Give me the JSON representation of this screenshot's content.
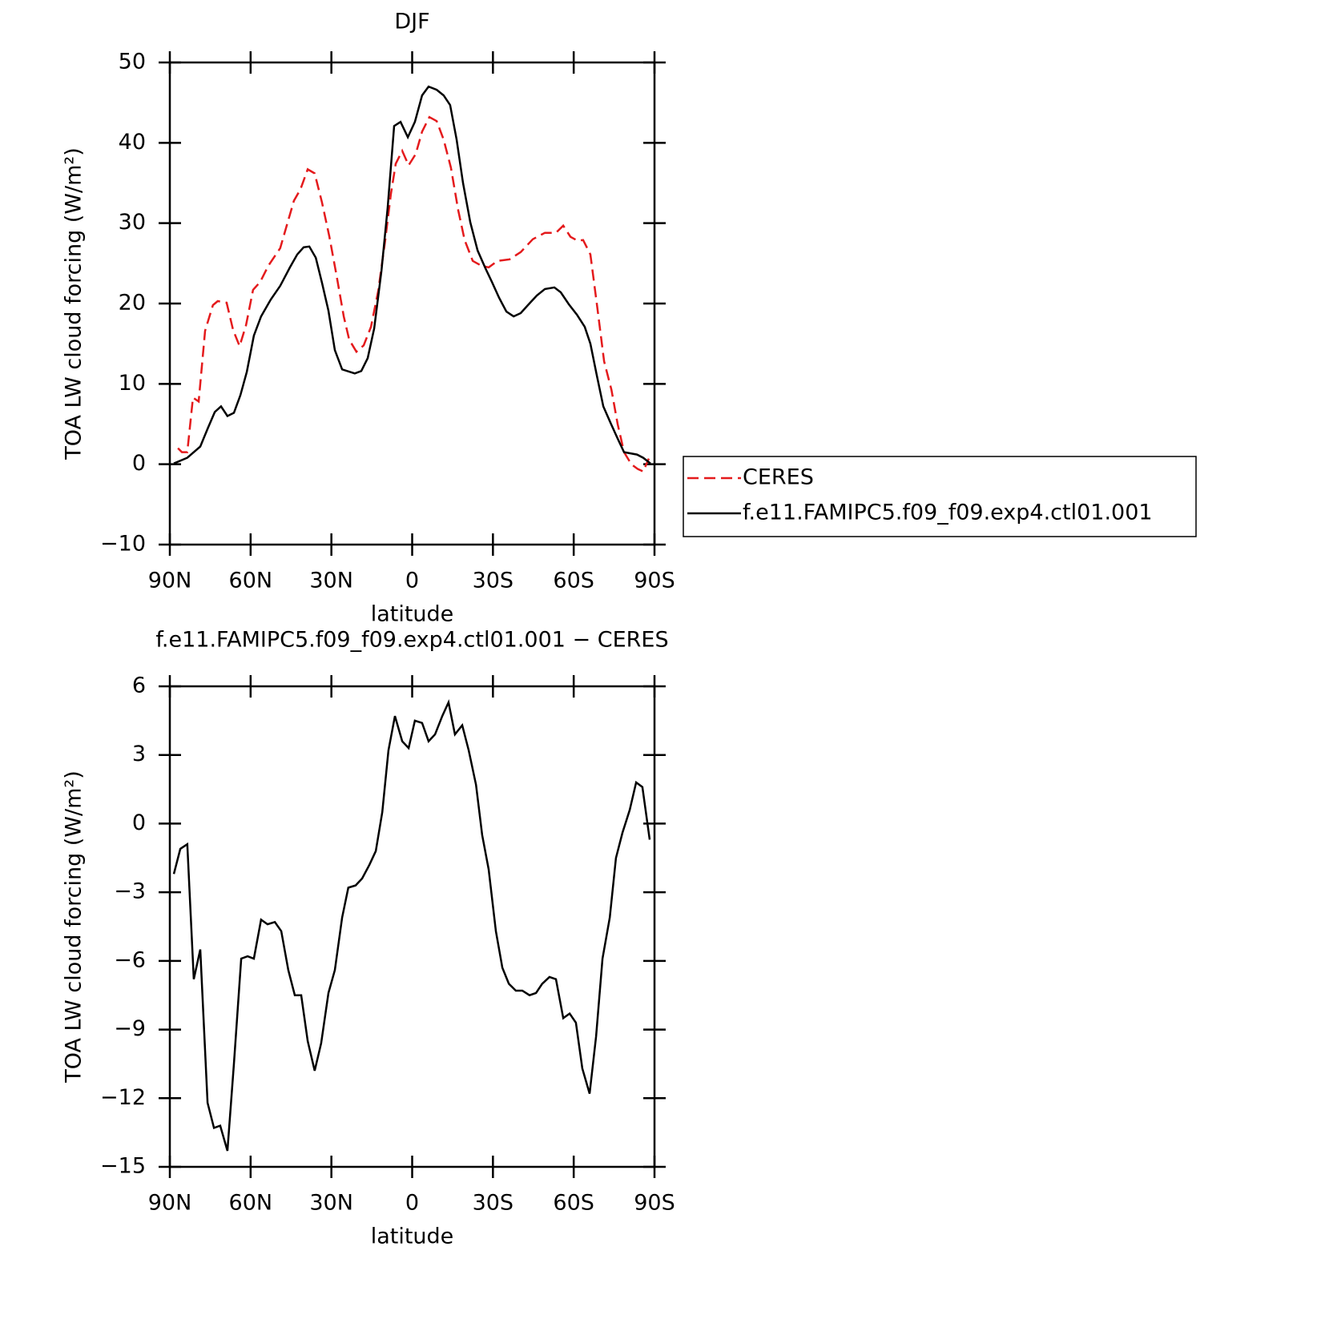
{
  "chart_data": [
    {
      "type": "line",
      "title": "DJF",
      "xlabel": "latitude",
      "ylabel": "TOA LW cloud forcing (W/m²)",
      "xlim": [
        90,
        -90
      ],
      "xticks": [
        {
          "value": 90,
          "label": "90N"
        },
        {
          "value": 60,
          "label": "60N"
        },
        {
          "value": 30,
          "label": "30N"
        },
        0,
        {
          "value": -30,
          "label": "30S"
        },
        {
          "value": -60,
          "label": "60S"
        },
        {
          "value": -90,
          "label": "90S"
        }
      ],
      "ylim": [
        -10,
        50
      ],
      "yticks": [
        {
          "value": -10,
          "label": "−10"
        },
        0,
        10,
        20,
        30,
        40,
        50
      ],
      "legend": "outside-right",
      "series": [
        {
          "name": "CERES",
          "color": "#e41a1c",
          "style": "dashed",
          "x": [
            87.0,
            85.5,
            83.5,
            81.4,
            79.3,
            76.9,
            74.0,
            72.2,
            68.9,
            66.5,
            64.1,
            61.7,
            59.1,
            56.4,
            53.4,
            49.0,
            43.9,
            41.5,
            38.8,
            36.2,
            33.5,
            30.8,
            28.1,
            25.4,
            23.4,
            20.7,
            18.0,
            15.3,
            12.6,
            10.0,
            7.9,
            6.1,
            3.7,
            1.3,
            -1.3,
            -3.7,
            -6.4,
            -9.1,
            -11.7,
            -14.4,
            -17.1,
            -19.5,
            -22.5,
            -25.7,
            -28.4,
            -31.7,
            -36.2,
            -40.3,
            -44.8,
            -49.3,
            -53.4,
            -56.1,
            -58.8,
            -61.5,
            -63.5,
            -66.2,
            -68.6,
            -71.3,
            -74.0,
            -76.3,
            -78.7,
            -81.4,
            -83.8,
            -85.8,
            -87.9
          ],
          "values": [
            2.0,
            1.5,
            1.5,
            8.3,
            7.8,
            16.6,
            19.8,
            20.3,
            20.1,
            16.7,
            14.7,
            17.3,
            21.7,
            22.7,
            24.7,
            26.9,
            32.8,
            34.2,
            36.7,
            36.2,
            32.6,
            28.4,
            23.5,
            18.4,
            15.5,
            14.0,
            14.8,
            17.1,
            21.6,
            27.9,
            33.6,
            37.4,
            39.0,
            37.2,
            38.6,
            41.4,
            43.2,
            42.7,
            40.4,
            36.9,
            31.6,
            27.9,
            25.3,
            24.7,
            24.5,
            25.3,
            25.5,
            26.4,
            28.0,
            28.8,
            28.8,
            29.7,
            28.3,
            27.8,
            27.9,
            26.1,
            19.9,
            12.8,
            9.3,
            5.0,
            1.5,
            0.0,
            -0.6,
            -0.9,
            0.7
          ]
        },
        {
          "name": "f.e11.FAMIPC5.f09_f09.exp4.ctl01.001",
          "color": "#000000",
          "style": "solid",
          "x": [
            88.5,
            83.5,
            78.7,
            76.0,
            73.3,
            71.0,
            68.6,
            66.2,
            63.8,
            61.4,
            58.8,
            56.1,
            52.5,
            49.0,
            45.4,
            42.7,
            40.3,
            38.2,
            35.8,
            33.5,
            31.1,
            28.7,
            26.0,
            21.3,
            18.9,
            16.5,
            14.1,
            11.4,
            9.1,
            6.7,
            4.3,
            1.6,
            -1.0,
            -3.7,
            -6.1,
            -9.1,
            -11.7,
            -14.1,
            -16.5,
            -18.9,
            -21.6,
            -24.3,
            -27.2,
            -29.6,
            -32.3,
            -35.0,
            -37.7,
            -40.3,
            -43.0,
            -46.3,
            -49.3,
            -52.8,
            -55.2,
            -58.2,
            -61.2,
            -64.1,
            -66.2,
            -68.6,
            -71.0,
            -73.6,
            -76.3,
            -78.7,
            -83.5,
            -85.8,
            -88.5
          ],
          "values": [
            0.1,
            0.8,
            2.2,
            4.4,
            6.5,
            7.2,
            6.0,
            6.4,
            8.6,
            11.5,
            16.0,
            18.4,
            20.5,
            22.2,
            24.5,
            26.1,
            27.0,
            27.1,
            25.7,
            22.6,
            19.1,
            14.2,
            11.8,
            11.3,
            11.6,
            13.2,
            16.9,
            24.1,
            31.9,
            42.1,
            42.6,
            40.7,
            42.6,
            45.9,
            47.0,
            46.6,
            45.9,
            44.7,
            40.4,
            35.0,
            30.1,
            26.6,
            24.4,
            22.7,
            20.7,
            19.0,
            18.4,
            18.8,
            19.8,
            21.0,
            21.8,
            22.0,
            21.4,
            19.9,
            18.6,
            17.1,
            15.0,
            11.0,
            7.2,
            5.2,
            3.2,
            1.5,
            1.2,
            0.8,
            0.1
          ]
        }
      ]
    },
    {
      "type": "line",
      "title": "f.e11.FAMIPC5.f09_f09.exp4.ctl01.001 − CERES",
      "xlabel": "latitude",
      "ylabel": "TOA LW cloud forcing (W/m²)",
      "xlim": [
        90,
        -90
      ],
      "xticks": [
        {
          "value": 90,
          "label": "90N"
        },
        {
          "value": 60,
          "label": "60N"
        },
        {
          "value": 30,
          "label": "30N"
        },
        0,
        {
          "value": -30,
          "label": "30S"
        },
        {
          "value": -60,
          "label": "60S"
        },
        {
          "value": -90,
          "label": "90S"
        }
      ],
      "ylim": [
        -15,
        6
      ],
      "yticks": [
        {
          "value": -15,
          "label": "−15"
        },
        {
          "value": -12,
          "label": "−12"
        },
        {
          "value": -9,
          "label": "−9"
        },
        {
          "value": -6,
          "label": "−6"
        },
        {
          "value": -3,
          "label": "−3"
        },
        0,
        3,
        6
      ],
      "series": [
        {
          "color": "#000000",
          "style": "solid",
          "x": [
            88.5,
            86.1,
            83.5,
            81.1,
            78.7,
            76.0,
            73.6,
            71.3,
            68.6,
            66.2,
            63.5,
            61.1,
            58.8,
            56.1,
            53.7,
            51.0,
            48.6,
            46.0,
            43.6,
            41.2,
            38.8,
            36.2,
            33.8,
            31.1,
            28.7,
            26.0,
            23.7,
            21.0,
            18.6,
            15.9,
            13.5,
            11.1,
            8.8,
            6.4,
            3.7,
            1.3,
            -1.0,
            -3.7,
            -6.1,
            -8.5,
            -11.2,
            -13.5,
            -15.9,
            -18.6,
            -21.0,
            -23.7,
            -26.0,
            -28.4,
            -31.1,
            -33.5,
            -35.9,
            -38.5,
            -40.9,
            -43.6,
            -46.0,
            -48.3,
            -51.0,
            -53.4,
            -56.1,
            -58.5,
            -60.8,
            -63.2,
            -65.9,
            -68.3,
            -70.7,
            -73.4,
            -75.7,
            -78.1,
            -80.8,
            -83.2,
            -85.5,
            -88.2
          ],
          "values": [
            -2.2,
            -1.1,
            -0.9,
            -6.8,
            -5.5,
            -12.2,
            -13.3,
            -13.2,
            -14.3,
            -10.5,
            -5.9,
            -5.8,
            -5.9,
            -4.2,
            -4.4,
            -4.3,
            -4.7,
            -6.4,
            -7.5,
            -7.5,
            -9.5,
            -10.8,
            -9.6,
            -7.4,
            -6.4,
            -4.1,
            -2.8,
            -2.7,
            -2.4,
            -1.8,
            -1.2,
            0.5,
            3.2,
            4.7,
            3.6,
            3.3,
            4.5,
            4.4,
            3.6,
            3.9,
            4.7,
            5.3,
            3.9,
            4.3,
            3.2,
            1.7,
            -0.5,
            -2.0,
            -4.7,
            -6.3,
            -7.0,
            -7.3,
            -7.3,
            -7.5,
            -7.4,
            -7.0,
            -6.7,
            -6.8,
            -8.5,
            -8.3,
            -8.7,
            -10.7,
            -11.8,
            -9.3,
            -5.9,
            -4.1,
            -1.5,
            -0.4,
            0.6,
            1.8,
            1.6,
            -0.7
          ]
        }
      ]
    }
  ]
}
